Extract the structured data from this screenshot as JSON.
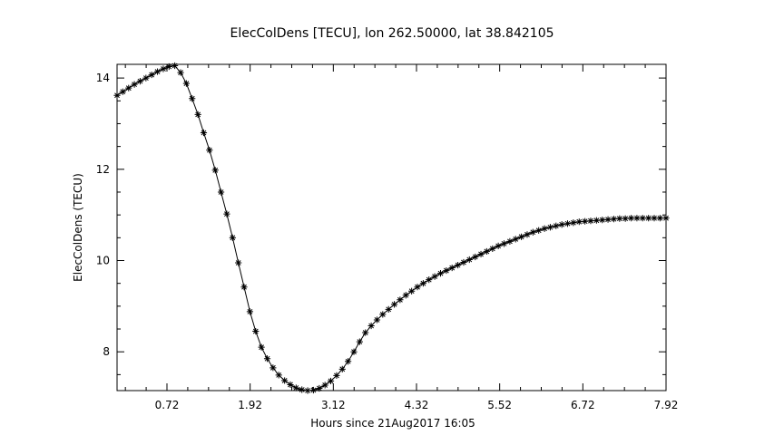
{
  "chart_data": {
    "type": "line",
    "title": "ElecColDens [TECU], lon 262.50000, lat 38.842105",
    "xlabel": "Hours since 21Aug2017 16:05",
    "ylabel": "ElecColDens (TECU)",
    "xlim": [
      0.0,
      7.92
    ],
    "ylim": [
      7.15,
      14.3
    ],
    "x_ticks": [
      0.72,
      1.92,
      3.12,
      4.32,
      5.52,
      6.72,
      7.92
    ],
    "x_tick_labels": [
      "0.72",
      "1.92",
      "3.12",
      "4.32",
      "5.52",
      "6.72",
      "7.92"
    ],
    "y_ticks": [
      8,
      10,
      12,
      14
    ],
    "y_tick_labels": [
      "8",
      "10",
      "12",
      "14"
    ],
    "marker": "asterisk",
    "grid": false,
    "series": [
      {
        "x": [
          0.0,
          0.083,
          0.167,
          0.25,
          0.333,
          0.417,
          0.5,
          0.583,
          0.667,
          0.75,
          0.833,
          0.917,
          1.0,
          1.083,
          1.167,
          1.25,
          1.333,
          1.417,
          1.5,
          1.583,
          1.667,
          1.75,
          1.833,
          1.917,
          2.0,
          2.083,
          2.167,
          2.25,
          2.333,
          2.417,
          2.5,
          2.583,
          2.667,
          2.75,
          2.833,
          2.917,
          3.0,
          3.083,
          3.167,
          3.25,
          3.333,
          3.417,
          3.5,
          3.583,
          3.667,
          3.75,
          3.833,
          3.917,
          4.0,
          4.083,
          4.167,
          4.25,
          4.333,
          4.417,
          4.5,
          4.583,
          4.667,
          4.75,
          4.833,
          4.917,
          5.0,
          5.083,
          5.167,
          5.25,
          5.333,
          5.417,
          5.5,
          5.583,
          5.667,
          5.75,
          5.833,
          5.917,
          6.0,
          6.083,
          6.167,
          6.25,
          6.333,
          6.417,
          6.5,
          6.583,
          6.667,
          6.75,
          6.833,
          6.917,
          7.0,
          7.083,
          7.167,
          7.25,
          7.333,
          7.417,
          7.5,
          7.583,
          7.667,
          7.75,
          7.833,
          7.92
        ],
        "values": [
          13.62,
          13.7,
          13.78,
          13.86,
          13.93,
          14.0,
          14.07,
          14.14,
          14.2,
          14.25,
          14.27,
          14.12,
          13.88,
          13.55,
          13.2,
          12.8,
          12.42,
          11.98,
          11.5,
          11.02,
          10.5,
          9.95,
          9.42,
          8.88,
          8.45,
          8.1,
          7.85,
          7.65,
          7.49,
          7.37,
          7.28,
          7.21,
          7.17,
          7.15,
          7.16,
          7.2,
          7.27,
          7.36,
          7.48,
          7.62,
          7.79,
          8.0,
          8.22,
          8.42,
          8.57,
          8.7,
          8.82,
          8.93,
          9.04,
          9.14,
          9.24,
          9.33,
          9.42,
          9.5,
          9.58,
          9.65,
          9.72,
          9.78,
          9.84,
          9.9,
          9.96,
          10.02,
          10.08,
          10.14,
          10.2,
          10.26,
          10.32,
          10.37,
          10.42,
          10.47,
          10.52,
          10.57,
          10.62,
          10.66,
          10.7,
          10.73,
          10.76,
          10.79,
          10.81,
          10.83,
          10.85,
          10.86,
          10.87,
          10.88,
          10.89,
          10.9,
          10.91,
          10.92,
          10.92,
          10.93,
          10.93,
          10.93,
          10.93,
          10.93,
          10.93,
          10.93
        ]
      }
    ]
  }
}
